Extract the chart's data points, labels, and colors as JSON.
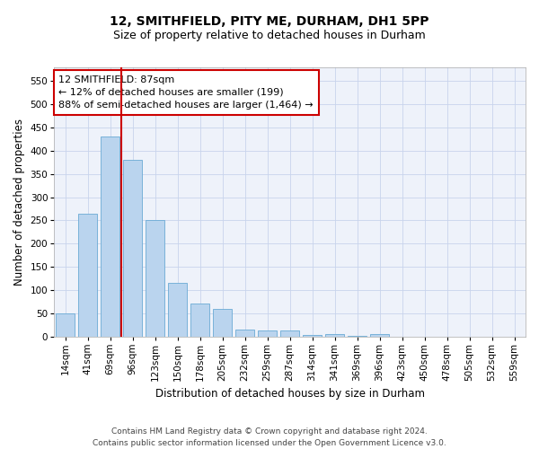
{
  "title_line1": "12, SMITHFIELD, PITY ME, DURHAM, DH1 5PP",
  "title_line2": "Size of property relative to detached houses in Durham",
  "xlabel": "Distribution of detached houses by size in Durham",
  "ylabel": "Number of detached properties",
  "categories": [
    "14sqm",
    "41sqm",
    "69sqm",
    "96sqm",
    "123sqm",
    "150sqm",
    "178sqm",
    "205sqm",
    "232sqm",
    "259sqm",
    "287sqm",
    "314sqm",
    "341sqm",
    "369sqm",
    "396sqm",
    "423sqm",
    "450sqm",
    "478sqm",
    "505sqm",
    "532sqm",
    "559sqm"
  ],
  "values": [
    50,
    265,
    430,
    380,
    250,
    115,
    70,
    60,
    15,
    12,
    12,
    4,
    5,
    2,
    5,
    0,
    0,
    0,
    0,
    0,
    0
  ],
  "bar_color": "#bad4ee",
  "bar_edge_color": "#6aaad4",
  "vline_color": "#cc0000",
  "ylim": [
    0,
    580
  ],
  "yticks": [
    0,
    50,
    100,
    150,
    200,
    250,
    300,
    350,
    400,
    450,
    500,
    550
  ],
  "annotation_text": "12 SMITHFIELD: 87sqm\n← 12% of detached houses are smaller (199)\n88% of semi-detached houses are larger (1,464) →",
  "annotation_box_color": "#ffffff",
  "annotation_box_edge": "#cc0000",
  "footer_line1": "Contains HM Land Registry data © Crown copyright and database right 2024.",
  "footer_line2": "Contains public sector information licensed under the Open Government Licence v3.0.",
  "bg_color": "#ffffff",
  "plot_bg_color": "#eef2fa",
  "grid_color": "#c8d4ec",
  "title_fontsize": 10,
  "subtitle_fontsize": 9,
  "axis_label_fontsize": 8.5,
  "tick_fontsize": 7.5,
  "annotation_fontsize": 8,
  "footer_fontsize": 6.5
}
